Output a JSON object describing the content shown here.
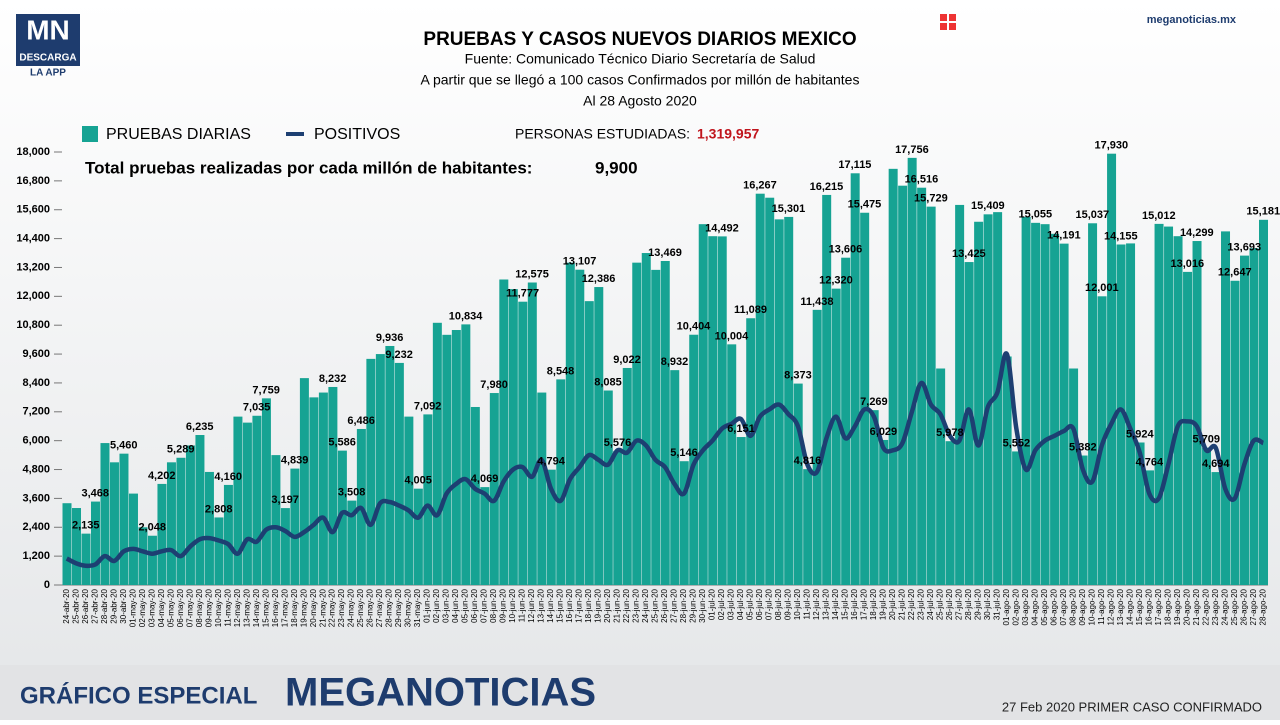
{
  "header": {
    "logo": "MN",
    "logo_sub": "DESCARGA",
    "logo_app": "LA APP",
    "site": "meganoticias.mx"
  },
  "footer": {
    "left": "GRÁFICO ESPECIAL",
    "brand": "MEGANOTICIAS",
    "note": "27 Feb 2020 PRIMER CASO CONFIRMADO"
  },
  "chart_data": {
    "type": "bar",
    "title": "PRUEBAS Y CASOS NUEVOS DIARIOS MEXICO",
    "subtitle": [
      "Fuente: Comunicado Técnico Diario Secretaría de Salud",
      "A partir que se llegó a 100 casos Confirmados por millón de habitantes",
      "Al 28 Agosto 2020"
    ],
    "annotations": {
      "studied_label": "PERSONAS ESTUDIADAS:",
      "studied_value": "1,319,957",
      "per_million_label": "Total pruebas realizadas por cada millón de habitantes:",
      "per_million_value": "9,900"
    },
    "categories": [
      "24-abr-20",
      "25-abr-20",
      "26-abr-20",
      "27-abr-20",
      "28-abr-20",
      "29-abr-20",
      "30-abr-20",
      "01-may-20",
      "02-may-20",
      "03-may-20",
      "04-may-20",
      "05-may-20",
      "06-may-20",
      "07-may-20",
      "08-may-20",
      "09-may-20",
      "10-may-20",
      "11-may-20",
      "12-may-20",
      "13-may-20",
      "14-may-20",
      "15-may-20",
      "16-may-20",
      "17-may-20",
      "18-may-20",
      "19-may-20",
      "20-may-20",
      "21-may-20",
      "22-may-20",
      "23-may-20",
      "24-may-20",
      "25-may-20",
      "26-may-20",
      "27-may-20",
      "28-may-20",
      "29-may-20",
      "30-may-20",
      "31-may-20",
      "01-jun-20",
      "02-jun-20",
      "03-jun-20",
      "04-jun-20",
      "05-jun-20",
      "06-jun-20",
      "07-jun-20",
      "08-jun-20",
      "09-jun-20",
      "10-jun-20",
      "11-jun-20",
      "12-jun-20",
      "13-jun-20",
      "14-jun-20",
      "15-jun-20",
      "16-jun-20",
      "17-jun-20",
      "18-jun-20",
      "19-jun-20",
      "20-jun-20",
      "21-jun-20",
      "22-jun-20",
      "23-jun-20",
      "24-jun-20",
      "25-jun-20",
      "26-jun-20",
      "27-jun-20",
      "28-jun-20",
      "29-jun-20",
      "30-jun-20",
      "01-jul-20",
      "02-jul-20",
      "03-jul-20",
      "04-jul-20",
      "05-jul-20",
      "06-jul-20",
      "07-jul-20",
      "08-jul-20",
      "09-jul-20",
      "10-jul-20",
      "11-jul-20",
      "12-jul-20",
      "13-jul-20",
      "14-jul-20",
      "15-jul-20",
      "16-jul-20",
      "17-jul-20",
      "18-jul-20",
      "19-jul-20",
      "20-jul-20",
      "21-jul-20",
      "22-jul-20",
      "23-jul-20",
      "24-jul-20",
      "25-jul-20",
      "26-jul-20",
      "27-jul-20",
      "28-jul-20",
      "29-jul-20",
      "30-jul-20",
      "31-jul-20",
      "01-ago-20",
      "02-ago-20",
      "03-ago-20",
      "04-ago-20",
      "05-ago-20",
      "06-ago-20",
      "07-ago-20",
      "08-ago-20",
      "09-ago-20",
      "10-ago-20",
      "11-ago-20",
      "12-ago-20",
      "13-ago-20",
      "14-ago-20",
      "15-ago-20",
      "16-ago-20",
      "17-ago-20",
      "18-ago-20",
      "19-ago-20",
      "20-ago-20",
      "21-ago-20",
      "22-ago-20",
      "23-ago-20",
      "24-ago-20",
      "25-ago-20",
      "26-ago-20",
      "27-ago-20",
      "28-ago-20"
    ],
    "series": [
      {
        "name": "PRUEBAS DIARIAS",
        "color": "#16a393",
        "values": [
          3400,
          3200,
          2135,
          3468,
          5900,
          5100,
          5460,
          3800,
          2400,
          2048,
          4202,
          5100,
          5289,
          5800,
          6235,
          4700,
          2808,
          4160,
          7000,
          6750,
          7035,
          7759,
          5400,
          3197,
          4839,
          8600,
          7800,
          8000,
          8232,
          5586,
          3508,
          6486,
          9400,
          9600,
          9936,
          9232,
          7000,
          4005,
          7092,
          10900,
          10400,
          10600,
          10834,
          7400,
          4069,
          7980,
          12700,
          12300,
          11777,
          12575,
          8000,
          4794,
          8548,
          13400,
          13107,
          11800,
          12386,
          8085,
          5576,
          9022,
          13400,
          13800,
          13100,
          13469,
          8932,
          5146,
          10404,
          15000,
          14500,
          14492,
          10004,
          6151,
          11089,
          16267,
          16100,
          15200,
          15301,
          8373,
          4816,
          11438,
          16215,
          12320,
          13606,
          17115,
          15475,
          7269,
          6029,
          17300,
          16600,
          17756,
          16516,
          15729,
          9000,
          5978,
          15800,
          13425,
          15100,
          15409,
          15500,
          9500,
          5552,
          15300,
          15055,
          15000,
          14600,
          14191,
          9000,
          5382,
          15037,
          12001,
          17930,
          14155,
          14200,
          5924,
          4764,
          15012,
          14900,
          14500,
          13016,
          14299,
          5709,
          4694,
          14700,
          12647,
          13693,
          14000,
          15181
        ],
        "value_labels": [
          null,
          null,
          "2,135",
          "3,468",
          null,
          null,
          "5,460",
          null,
          null,
          "2,048",
          "4,202",
          null,
          "5,289",
          null,
          "6,235",
          null,
          "2,808",
          "4,160",
          null,
          null,
          "7,035",
          "7,759",
          null,
          "3,197",
          "4,839",
          null,
          null,
          null,
          "8,232",
          "5,586",
          "3,508",
          "6,486",
          null,
          null,
          "9,936",
          "9,232",
          null,
          "4,005",
          "7,092",
          null,
          null,
          null,
          "10,834",
          null,
          "4,069",
          "7,980",
          null,
          null,
          "11,777",
          "12,575",
          null,
          "4,794",
          "8,548",
          null,
          "13,107",
          null,
          "12,386",
          "8,085",
          "5,576",
          "9,022",
          null,
          null,
          null,
          "13,469",
          "8,932",
          "5,146",
          "10,404",
          null,
          null,
          "14,492",
          "10,004",
          "6,151",
          "11,089",
          "16,267",
          null,
          null,
          "15,301",
          "8,373",
          "4,816",
          "11,438",
          "16,215",
          "12,320",
          "13,606",
          "17,115",
          "15,475",
          "7,269",
          "6,029",
          null,
          null,
          "17,756",
          "16,516",
          "15,729",
          null,
          "5,978",
          null,
          "13,425",
          null,
          "15,409",
          null,
          null,
          "5,552",
          null,
          "15,055",
          null,
          null,
          "14,191",
          null,
          "5,382",
          "15,037",
          "12,001",
          "17,930",
          "14,155",
          null,
          "5,924",
          "4,764",
          "15,012",
          null,
          null,
          "13,016",
          "14,299",
          "5,709",
          "4,694",
          null,
          "12,647",
          "13,693",
          null,
          "15,181"
        ]
      },
      {
        "name": "POSITIVOS",
        "color": "#1d3f72",
        "type": "line",
        "values": [
          1100,
          900,
          800,
          850,
          1200,
          1000,
          1400,
          1500,
          1400,
          1300,
          1400,
          1450,
          1200,
          1600,
          1900,
          1950,
          1850,
          1700,
          1300,
          1900,
          1800,
          2300,
          2400,
          2250,
          2000,
          2200,
          2500,
          2800,
          2200,
          3000,
          2900,
          3200,
          2500,
          3400,
          3450,
          3300,
          3100,
          2800,
          3300,
          2900,
          3800,
          4200,
          4400,
          4000,
          3800,
          3500,
          4300,
          4800,
          4900,
          4500,
          5200,
          4000,
          3500,
          4400,
          4900,
          5400,
          5200,
          5000,
          5600,
          5500,
          6000,
          5800,
          5200,
          4900,
          4200,
          3800,
          5000,
          5600,
          6000,
          6500,
          6700,
          6900,
          6200,
          7000,
          7300,
          7500,
          7100,
          6600,
          5000,
          4700,
          6100,
          7000,
          6100,
          6600,
          7300,
          7000,
          5700,
          5600,
          5900,
          7200,
          8400,
          7500,
          7100,
          6200,
          6000,
          7300,
          5800,
          7400,
          8000,
          9600,
          6500,
          4800,
          5600,
          6000,
          6200,
          6400,
          6500,
          4800,
          4300,
          5800,
          6700,
          7300,
          6500,
          5500,
          3800,
          3600,
          5000,
          6600,
          6800,
          6600,
          5600,
          5700,
          4000,
          3600,
          5000,
          6000,
          5900
        ]
      }
    ],
    "ylim": [
      0,
      18000
    ],
    "yticks": [
      0,
      {
        "value": 1200,
        "label": "1,200"
      },
      {
        "value": 2400,
        "label": "2,400"
      },
      {
        "value": 3600,
        "label": "3,600"
      },
      {
        "value": 4800,
        "label": "4,800"
      },
      {
        "value": 6000,
        "label": "6,000"
      },
      {
        "value": 7200,
        "label": "7,200"
      },
      {
        "value": 8400,
        "label": "8,400"
      },
      {
        "value": 9600,
        "label": "9,600"
      },
      {
        "value": 10800,
        "label": "10,800"
      },
      {
        "value": 12000,
        "label": "12,000"
      },
      {
        "value": 13200,
        "label": "13,200"
      },
      {
        "value": 14400,
        "label": "14,400"
      },
      {
        "value": 15600,
        "label": "15,600"
      },
      {
        "value": 16800,
        "label": "16,800"
      },
      {
        "value": 18000,
        "label": "18,000"
      }
    ],
    "studied_color": "#c0141c"
  }
}
